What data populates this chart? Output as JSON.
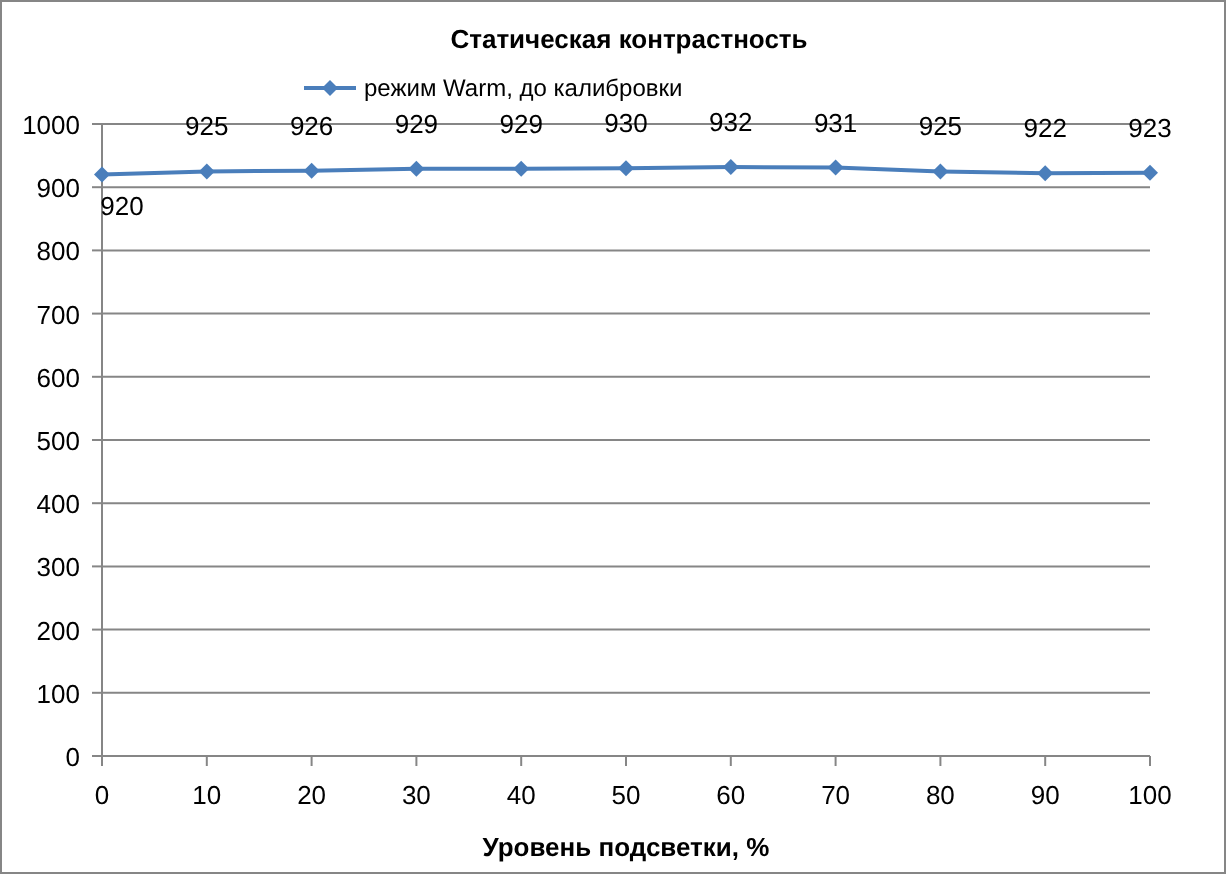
{
  "chart_data": {
    "type": "line",
    "title": "Статическая контрастность",
    "xlabel": "Уровень подсветки, %",
    "x": [
      0,
      10,
      20,
      30,
      40,
      50,
      60,
      70,
      80,
      90,
      100
    ],
    "series": [
      {
        "name": "режим Warm, до калибровки",
        "color": "#4a7ebb",
        "values": [
          920,
          925,
          926,
          929,
          929,
          930,
          932,
          931,
          925,
          922,
          923
        ]
      }
    ],
    "xlim": [
      0,
      100
    ],
    "xticks": [
      0,
      10,
      20,
      30,
      40,
      50,
      60,
      70,
      80,
      90,
      100
    ],
    "ylim": [
      0,
      1000
    ],
    "yticks": [
      0,
      100,
      200,
      300,
      400,
      500,
      600,
      700,
      800,
      900,
      1000
    ],
    "grid": "y",
    "legend": "top",
    "marker": "diamond",
    "line_style": "solid",
    "data_labels": true
  }
}
